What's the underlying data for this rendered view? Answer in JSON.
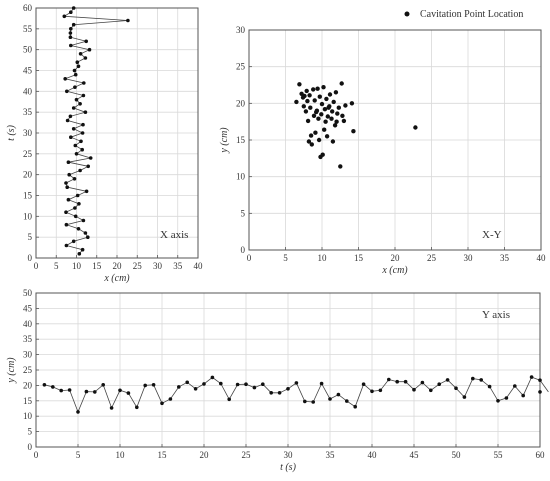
{
  "chart_data": [
    {
      "type": "line",
      "annotation": "X axis",
      "xlabel": "x (cm)",
      "ylabel": "t (s)",
      "xlim": [
        0,
        40
      ],
      "ylim": [
        0,
        60
      ],
      "xticks": [
        0,
        5,
        10,
        15,
        20,
        25,
        30,
        35,
        40
      ],
      "yticks": [
        0,
        5,
        10,
        15,
        20,
        25,
        30,
        35,
        40,
        45,
        50,
        55,
        60
      ],
      "grid": true,
      "points": [
        [
          10.7,
          1
        ],
        [
          11.5,
          2
        ],
        [
          7.5,
          3
        ],
        [
          9.3,
          4
        ],
        [
          12.8,
          5
        ],
        [
          12.2,
          6
        ],
        [
          10.5,
          7
        ],
        [
          7.5,
          8
        ],
        [
          11.7,
          9
        ],
        [
          9.8,
          10
        ],
        [
          7.4,
          11
        ],
        [
          9.6,
          12
        ],
        [
          10.6,
          13
        ],
        [
          8.0,
          14
        ],
        [
          10.3,
          15
        ],
        [
          12.5,
          16
        ],
        [
          7.7,
          17
        ],
        [
          7.4,
          18
        ],
        [
          9.5,
          19
        ],
        [
          8.2,
          20
        ],
        [
          10.9,
          21
        ],
        [
          12.9,
          22
        ],
        [
          8.0,
          23
        ],
        [
          13.5,
          24
        ],
        [
          10.0,
          25
        ],
        [
          11.4,
          26
        ],
        [
          9.7,
          27
        ],
        [
          11.1,
          28
        ],
        [
          8.6,
          29
        ],
        [
          11.5,
          30
        ],
        [
          9.3,
          31
        ],
        [
          11.6,
          32
        ],
        [
          7.8,
          33
        ],
        [
          8.5,
          34
        ],
        [
          12.2,
          35
        ],
        [
          9.3,
          36
        ],
        [
          10.9,
          37
        ],
        [
          10.0,
          38
        ],
        [
          11.7,
          39
        ],
        [
          7.6,
          40
        ],
        [
          9.6,
          41
        ],
        [
          11.8,
          42
        ],
        [
          7.2,
          43
        ],
        [
          9.8,
          44
        ],
        [
          9.5,
          45
        ],
        [
          10.5,
          46
        ],
        [
          10.2,
          47
        ],
        [
          12.2,
          48
        ],
        [
          11.0,
          49
        ],
        [
          13.2,
          50
        ],
        [
          8.6,
          51
        ],
        [
          12.4,
          52
        ],
        [
          8.5,
          53
        ],
        [
          8.5,
          54
        ],
        [
          8.6,
          55
        ],
        [
          9.3,
          56
        ],
        [
          22.7,
          57
        ],
        [
          7.0,
          58
        ],
        [
          8.6,
          59
        ],
        [
          9.3,
          60
        ]
      ]
    },
    {
      "type": "scatter",
      "legend": "Cavitation Point Location",
      "legend_position": "top-right",
      "annotation": "X-Y",
      "xlabel": "x (cm)",
      "ylabel": "y (cm)",
      "xlim": [
        0,
        40
      ],
      "ylim": [
        0,
        30
      ],
      "xticks": [
        0,
        5,
        10,
        15,
        20,
        25,
        30,
        35,
        40
      ],
      "yticks": [
        0,
        5,
        10,
        15,
        20,
        25,
        30
      ],
      "grid": true,
      "points": [
        [
          6.5,
          20.2
        ],
        [
          6.9,
          22.6
        ],
        [
          7.2,
          21.3
        ],
        [
          7.5,
          19.6
        ],
        [
          7.6,
          21.0
        ],
        [
          7.9,
          21.7
        ],
        [
          7.8,
          18.9
        ],
        [
          8.0,
          20.3
        ],
        [
          8.1,
          17.6
        ],
        [
          8.3,
          21.1
        ],
        [
          8.4,
          19.4
        ],
        [
          8.5,
          15.6
        ],
        [
          8.6,
          14.4
        ],
        [
          8.8,
          21.9
        ],
        [
          8.9,
          18.3
        ],
        [
          9.0,
          20.4
        ],
        [
          9.1,
          16.0
        ],
        [
          9.3,
          19.0
        ],
        [
          9.4,
          22.0
        ],
        [
          9.5,
          17.9
        ],
        [
          9.6,
          15.0
        ],
        [
          9.7,
          20.9
        ],
        [
          9.8,
          12.7
        ],
        [
          9.9,
          18.5
        ],
        [
          10.0,
          19.9
        ],
        [
          10.1,
          13.0
        ],
        [
          10.2,
          22.2
        ],
        [
          10.3,
          16.4
        ],
        [
          10.4,
          19.2
        ],
        [
          10.5,
          17.5
        ],
        [
          10.6,
          20.6
        ],
        [
          10.7,
          15.5
        ],
        [
          10.8,
          18.2
        ],
        [
          11.0,
          19.6
        ],
        [
          11.1,
          21.2
        ],
        [
          11.3,
          17.9
        ],
        [
          11.4,
          18.9
        ],
        [
          11.5,
          14.8
        ],
        [
          11.6,
          20.2
        ],
        [
          11.8,
          17.0
        ],
        [
          11.9,
          21.5
        ],
        [
          12.1,
          18.6
        ],
        [
          12.3,
          19.4
        ],
        [
          12.5,
          11.4
        ],
        [
          12.7,
          22.7
        ],
        [
          12.8,
          18.3
        ],
        [
          13.0,
          17.6
        ],
        [
          13.2,
          19.7
        ],
        [
          14.1,
          20.0
        ],
        [
          14.3,
          16.2
        ],
        [
          22.8,
          16.7
        ],
        [
          9.2,
          18.8
        ],
        [
          7.4,
          20.8
        ],
        [
          8.2,
          14.8
        ],
        [
          10.9,
          19.4
        ],
        [
          12.0,
          17.5
        ]
      ]
    },
    {
      "type": "line",
      "annotation": "Y axis",
      "xlabel": "t (s)",
      "ylabel": "y (cm)",
      "xlim": [
        0,
        60
      ],
      "ylim": [
        0,
        50
      ],
      "xticks": [
        0,
        5,
        10,
        15,
        20,
        25,
        30,
        35,
        40,
        45,
        50,
        55,
        60
      ],
      "yticks": [
        0,
        5,
        10,
        15,
        20,
        25,
        30,
        35,
        40,
        45,
        50
      ],
      "grid": true,
      "points": [
        [
          1,
          20.2
        ],
        [
          2,
          19.5
        ],
        [
          3,
          18.3
        ],
        [
          4,
          18.5
        ],
        [
          5,
          11.4
        ],
        [
          6,
          18.0
        ],
        [
          7,
          17.9
        ],
        [
          8,
          20.2
        ],
        [
          9,
          12.7
        ],
        [
          10,
          18.4
        ],
        [
          11,
          17.5
        ],
        [
          12,
          12.9
        ],
        [
          13,
          20.0
        ],
        [
          14,
          20.2
        ],
        [
          15,
          14.2
        ],
        [
          16,
          15.6
        ],
        [
          17,
          19.5
        ],
        [
          18,
          21.0
        ],
        [
          19,
          18.9
        ],
        [
          20,
          20.5
        ],
        [
          21,
          22.6
        ],
        [
          22,
          20.6
        ],
        [
          23,
          15.5
        ],
        [
          24,
          20.3
        ],
        [
          25,
          20.4
        ],
        [
          26,
          19.3
        ],
        [
          27,
          20.4
        ],
        [
          28,
          17.6
        ],
        [
          29,
          17.6
        ],
        [
          30,
          18.9
        ],
        [
          31,
          20.8
        ],
        [
          32,
          14.8
        ],
        [
          33,
          14.6
        ],
        [
          34,
          20.6
        ],
        [
          35,
          15.6
        ],
        [
          36,
          17.0
        ],
        [
          37,
          14.9
        ],
        [
          38,
          13.1
        ],
        [
          39,
          20.4
        ],
        [
          40,
          18.1
        ],
        [
          41,
          18.4
        ],
        [
          42,
          21.9
        ],
        [
          43,
          21.2
        ],
        [
          44,
          21.2
        ],
        [
          45,
          18.6
        ],
        [
          46,
          20.9
        ],
        [
          47,
          18.4
        ],
        [
          48,
          20.4
        ],
        [
          49,
          21.8
        ],
        [
          50,
          19.1
        ],
        [
          51,
          16.2
        ],
        [
          52,
          22.2
        ],
        [
          53,
          21.8
        ],
        [
          54,
          19.6
        ],
        [
          55,
          15.0
        ],
        [
          56,
          15.9
        ],
        [
          57,
          19.8
        ],
        [
          58,
          16.7
        ],
        [
          59,
          22.7
        ],
        [
          60,
          21.7
        ],
        [
          61,
          17.9
        ]
      ]
    }
  ]
}
